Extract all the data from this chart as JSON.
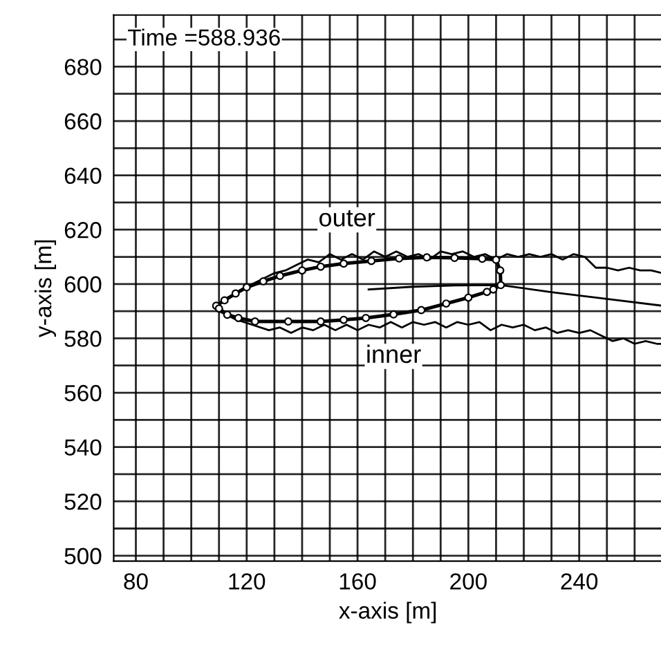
{
  "chart_data": {
    "type": "line",
    "xlabel": "x-axis [m]",
    "ylabel": "y-axis [m]",
    "annotations": [
      "Time =588.936",
      "outer",
      "inner"
    ],
    "xlim": [
      72,
      270
    ],
    "ylim": [
      498,
      699
    ],
    "xticks": [
      80,
      {
        "value": 90,
        "label": null
      },
      {
        "value": 100,
        "label": null
      },
      {
        "value": 110,
        "label": null
      },
      120,
      {
        "value": 130,
        "label": null
      },
      {
        "value": 140,
        "label": null
      },
      {
        "value": 150,
        "label": null
      },
      160,
      {
        "value": 170,
        "label": null
      },
      {
        "value": 180,
        "label": null
      },
      {
        "value": 190,
        "label": null
      },
      200,
      {
        "value": 210,
        "label": null
      },
      {
        "value": 220,
        "label": null
      },
      {
        "value": 230,
        "label": null
      },
      240,
      {
        "value": 250,
        "label": null
      },
      {
        "value": 260,
        "label": null
      }
    ],
    "yticks": [
      500,
      {
        "value": 510,
        "label": null
      },
      520,
      {
        "value": 530,
        "label": null
      },
      540,
      {
        "value": 550,
        "label": null
      },
      560,
      {
        "value": 570,
        "label": null
      },
      580,
      {
        "value": 590,
        "label": null
      },
      600,
      {
        "value": 610,
        "label": null
      },
      620,
      {
        "value": 630,
        "label": null
      },
      640,
      {
        "value": 650,
        "label": null
      },
      660,
      {
        "value": 670,
        "label": null
      },
      680,
      {
        "value": 690,
        "label": null
      }
    ],
    "grid": true,
    "series": [
      {
        "color": "#000000",
        "x": [
          112,
          118,
          124,
          130,
          134,
          138,
          142,
          146,
          150,
          154,
          158,
          162,
          166,
          170,
          174,
          178,
          182,
          186,
          190,
          194,
          198,
          202,
          206,
          210,
          214,
          218,
          222,
          226,
          230,
          234,
          238,
          242,
          246,
          250,
          254,
          258,
          262,
          266,
          270
        ],
        "values": [
          594,
          598,
          601,
          604,
          605,
          607,
          609,
          608,
          611,
          609,
          611,
          609,
          612,
          610,
          612,
          610,
          611,
          609,
          612,
          611,
          612,
          610,
          611,
          609,
          611,
          610,
          611,
          610,
          611,
          609,
          611,
          610,
          606,
          606,
          605,
          606,
          605,
          605,
          604
        ]
      },
      {
        "color": "#000000",
        "x": [
          110,
          116,
          122,
          128,
          132,
          136,
          140,
          144,
          148,
          152,
          156,
          160,
          164,
          168,
          172,
          176,
          180,
          184,
          188,
          192,
          196,
          200,
          204,
          208,
          212,
          216,
          220,
          224,
          228,
          232,
          236,
          240,
          244,
          248,
          252,
          256,
          260,
          264,
          268,
          270
        ],
        "values": [
          590,
          587,
          585,
          583,
          584,
          582,
          584,
          583,
          585,
          583,
          585,
          583,
          585,
          584,
          586,
          584,
          586,
          585,
          586,
          584,
          586,
          585,
          586,
          583,
          585,
          584,
          585,
          583,
          584,
          582,
          583,
          582,
          583,
          581,
          579,
          580,
          578,
          579,
          578,
          578
        ]
      },
      {
        "color": "#000000",
        "x": [
          164,
          180,
          195,
          211.7,
          230,
          250,
          270
        ],
        "values": [
          598,
          599,
          599.5,
          599.6,
          597,
          594.5,
          592
        ]
      },
      {
        "color": "#000000",
        "marker": "circle",
        "x": [
          109,
          112,
          116,
          120,
          126,
          132,
          140,
          146.7,
          155,
          165,
          175,
          185,
          195,
          205,
          210,
          211.5,
          211.7,
          209,
          206.7,
          200,
          192,
          183,
          173,
          163,
          155,
          146.7,
          135,
          123,
          117,
          113,
          110
        ],
        "values": [
          592,
          594,
          596.5,
          598.8,
          601,
          603,
          605,
          606.4,
          607.5,
          608.5,
          609.4,
          609.8,
          609.6,
          609.3,
          608.9,
          605,
          599.6,
          598,
          597.1,
          595,
          592.8,
          590.4,
          588.8,
          587.5,
          586.8,
          586.2,
          586.2,
          586.2,
          587.5,
          588.7,
          591
        ]
      }
    ]
  }
}
